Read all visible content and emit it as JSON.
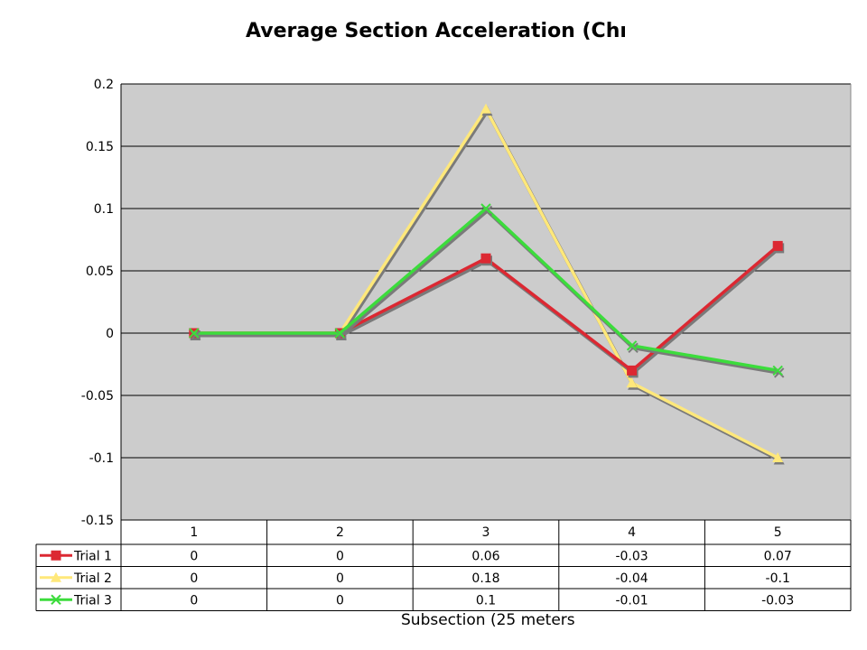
{
  "chart_data": {
    "type": "line",
    "title": "Average Section Acceleration (Chris Lio",
    "xlabel": "Subsection (25 meters",
    "ylabel": "",
    "categories": [
      "1",
      "2",
      "3",
      "4",
      "5"
    ],
    "ylim": [
      -0.15,
      0.2
    ],
    "yticks": [
      "0.2",
      "0.15",
      "0.1",
      "0.05",
      "0",
      "-0.05",
      "-0.1",
      "-0.15"
    ],
    "grid": true,
    "legend": "data-table",
    "series": [
      {
        "name": "Trial 1",
        "values": [
          0,
          0,
          0.06,
          -0.03,
          0.07
        ],
        "labels": [
          "0",
          "0",
          "0.06",
          "-0.03",
          "0.07"
        ],
        "color": "#dc2832",
        "marker": "square"
      },
      {
        "name": "Trial 2",
        "values": [
          0,
          0,
          0.18,
          -0.04,
          -0.1
        ],
        "labels": [
          "0",
          "0",
          "0.18",
          "-0.04",
          "-0.1"
        ],
        "color": "#ffe87a",
        "marker": "triangle"
      },
      {
        "name": "Trial 3",
        "values": [
          0,
          0,
          0.1,
          -0.01,
          -0.03
        ],
        "labels": [
          "0",
          "0",
          "0.1",
          "-0.01",
          "-0.03"
        ],
        "color": "#3cdc3c",
        "marker": "x"
      }
    ],
    "plot_background": "#cccccc"
  }
}
